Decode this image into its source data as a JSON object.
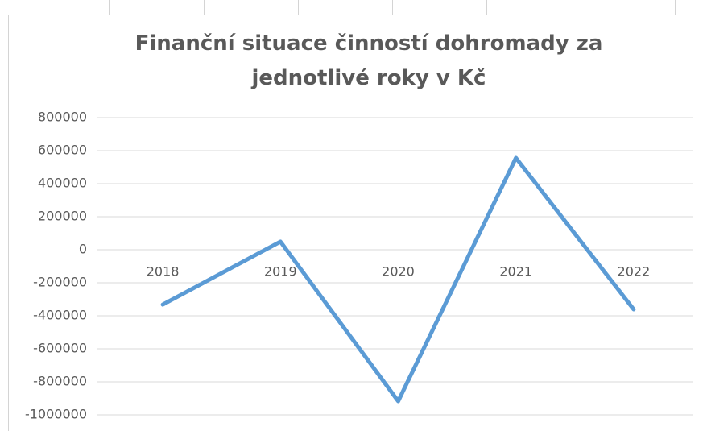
{
  "chart_data": {
    "type": "line",
    "title": "Finanční situace činností dohromady za jednotlivé roky v Kč",
    "categories": [
      "2018",
      "2019",
      "2020",
      "2021",
      "2022"
    ],
    "series": [
      {
        "name": "Finanční situace",
        "color": "#5b9bd5",
        "values": [
          -332000,
          49000,
          -917000,
          556000,
          -361000
        ]
      }
    ],
    "ylim": [
      -1000000,
      800000
    ],
    "yticks": [
      -1000000,
      -800000,
      -600000,
      -400000,
      -200000,
      0,
      200000,
      400000,
      600000,
      800000
    ],
    "grid": true
  }
}
